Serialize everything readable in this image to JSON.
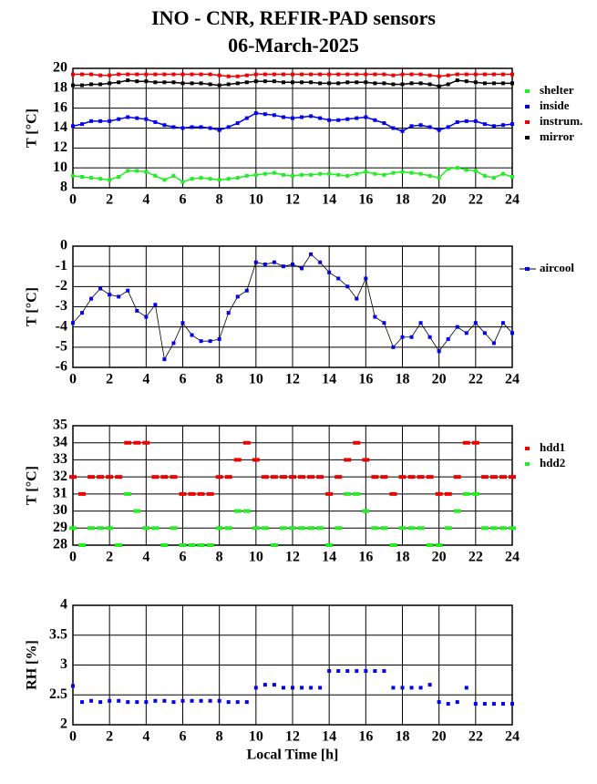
{
  "title": "INO - CNR, REFIR-PAD sensors",
  "subtitle": "06-March-2025",
  "chart_data": [
    {
      "type": "line",
      "ylabel": "T [°C]",
      "xlim": [
        0,
        24
      ],
      "xticks": [
        0,
        2,
        4,
        6,
        8,
        10,
        12,
        14,
        16,
        18,
        20,
        22,
        24
      ],
      "ylim": [
        8,
        20
      ],
      "yticks": [
        8,
        10,
        12,
        14,
        16,
        18,
        20
      ],
      "grid": true,
      "x": [
        0,
        0.5,
        1,
        1.5,
        2,
        2.5,
        3,
        3.5,
        4,
        4.5,
        5,
        5.5,
        6,
        6.5,
        7,
        7.5,
        8,
        8.5,
        9,
        9.5,
        10,
        10.5,
        11,
        11.5,
        12,
        12.5,
        13,
        13.5,
        14,
        14.5,
        15,
        15.5,
        16,
        16.5,
        17,
        17.5,
        18,
        18.5,
        19,
        19.5,
        20,
        20.5,
        21,
        21.5,
        22,
        22.5,
        23,
        23.5,
        24
      ],
      "series": [
        {
          "name": "shelter",
          "color": "#22ee22",
          "values": [
            9.2,
            9.1,
            9.0,
            8.9,
            8.8,
            9.1,
            9.7,
            9.7,
            9.6,
            9.2,
            8.8,
            9.2,
            8.6,
            8.9,
            9.0,
            8.9,
            8.8,
            8.9,
            9.0,
            9.2,
            9.3,
            9.4,
            9.5,
            9.3,
            9.2,
            9.3,
            9.3,
            9.4,
            9.4,
            9.3,
            9.2,
            9.4,
            9.6,
            9.4,
            9.3,
            9.5,
            9.6,
            9.5,
            9.4,
            9.2,
            9.0,
            9.9,
            10.0,
            9.8,
            9.7,
            9.2,
            9.0,
            9.4,
            9.1
          ]
        },
        {
          "name": "inside",
          "color": "#0000ee",
          "values": [
            14.2,
            14.4,
            14.7,
            14.7,
            14.7,
            14.9,
            15.1,
            15.0,
            14.9,
            14.6,
            14.3,
            14.1,
            14.0,
            14.1,
            14.1,
            14.0,
            13.8,
            14.1,
            14.5,
            15.0,
            15.5,
            15.4,
            15.3,
            15.1,
            15.0,
            15.1,
            15.2,
            15.0,
            14.8,
            14.8,
            14.9,
            15.0,
            15.1,
            14.8,
            14.5,
            14.0,
            13.7,
            14.2,
            14.3,
            14.1,
            13.8,
            14.1,
            14.6,
            14.7,
            14.7,
            14.4,
            14.2,
            14.3,
            14.4
          ]
        },
        {
          "name": "instrum.",
          "color": "#ee0000",
          "values": [
            19.4,
            19.4,
            19.4,
            19.3,
            19.3,
            19.4,
            19.4,
            19.4,
            19.4,
            19.4,
            19.4,
            19.4,
            19.4,
            19.4,
            19.4,
            19.4,
            19.3,
            19.2,
            19.2,
            19.3,
            19.4,
            19.4,
            19.4,
            19.4,
            19.4,
            19.4,
            19.4,
            19.4,
            19.4,
            19.4,
            19.4,
            19.4,
            19.4,
            19.4,
            19.4,
            19.3,
            19.4,
            19.4,
            19.4,
            19.3,
            19.2,
            19.3,
            19.4,
            19.4,
            19.4,
            19.4,
            19.4,
            19.4,
            19.4
          ]
        },
        {
          "name": "mirror",
          "color": "#000000",
          "values": [
            18.3,
            18.3,
            18.4,
            18.4,
            18.5,
            18.6,
            18.8,
            18.7,
            18.7,
            18.6,
            18.6,
            18.6,
            18.5,
            18.5,
            18.5,
            18.4,
            18.3,
            18.4,
            18.5,
            18.6,
            18.7,
            18.7,
            18.7,
            18.6,
            18.6,
            18.6,
            18.6,
            18.5,
            18.5,
            18.5,
            18.6,
            18.6,
            18.6,
            18.5,
            18.5,
            18.4,
            18.4,
            18.5,
            18.5,
            18.4,
            18.2,
            18.4,
            18.8,
            18.7,
            18.6,
            18.5,
            18.5,
            18.5,
            18.5
          ]
        }
      ]
    },
    {
      "type": "line",
      "ylabel": "T [°C]",
      "xlim": [
        0,
        24
      ],
      "xticks": [
        0,
        2,
        4,
        6,
        8,
        10,
        12,
        14,
        16,
        18,
        20,
        22,
        24
      ],
      "ylim": [
        -6,
        0
      ],
      "yticks": [
        -6,
        -5,
        -4,
        -3,
        -2,
        -1,
        0
      ],
      "grid": true,
      "x": [
        0,
        0.5,
        1,
        1.5,
        2,
        2.5,
        3,
        3.5,
        4,
        4.5,
        5,
        5.5,
        6,
        6.5,
        7,
        7.5,
        8,
        8.5,
        9,
        9.5,
        10,
        10.5,
        11,
        11.5,
        12,
        12.5,
        13,
        13.5,
        14,
        14.5,
        15,
        15.5,
        16,
        16.5,
        17,
        17.5,
        18,
        18.5,
        19,
        19.5,
        20,
        20.5,
        21,
        21.5,
        22,
        22.5,
        23,
        23.5,
        24
      ],
      "series": [
        {
          "name": "aircool",
          "color": "#0000ee",
          "values": [
            -3.8,
            -3.3,
            -2.6,
            -2.1,
            -2.4,
            -2.5,
            -2.2,
            -3.2,
            -3.5,
            -2.9,
            -5.6,
            -4.8,
            -3.8,
            -4.4,
            -4.7,
            -4.7,
            -4.6,
            -3.3,
            -2.5,
            -2.2,
            -0.8,
            -0.9,
            -0.8,
            -1.0,
            -0.9,
            -1.1,
            -0.4,
            -0.8,
            -1.3,
            -1.6,
            -2.0,
            -2.6,
            -1.6,
            -3.5,
            -3.8,
            -5.0,
            -4.5,
            -4.5,
            -3.8,
            -4.5,
            -5.2,
            -4.6,
            -4.0,
            -4.3,
            -3.8,
            -4.3,
            -4.8,
            -3.8,
            -4.3
          ]
        }
      ]
    },
    {
      "type": "scatter",
      "ylabel": "T [°C]",
      "xlim": [
        0,
        24
      ],
      "xticks": [
        0,
        2,
        4,
        6,
        8,
        10,
        12,
        14,
        16,
        18,
        20,
        22,
        24
      ],
      "ylim": [
        28,
        35
      ],
      "yticks": [
        28,
        29,
        30,
        31,
        32,
        33,
        34,
        35
      ],
      "grid": true,
      "x": [
        0,
        0.5,
        1,
        1.5,
        2,
        2.5,
        3,
        3.5,
        4,
        4.5,
        5,
        5.5,
        6,
        6.5,
        7,
        7.5,
        8,
        8.5,
        9,
        9.5,
        10,
        10.5,
        11,
        11.5,
        12,
        12.5,
        13,
        13.5,
        14,
        14.5,
        15,
        15.5,
        16,
        16.5,
        17,
        17.5,
        18,
        18.5,
        19,
        19.5,
        20,
        20.5,
        21,
        21.5,
        22,
        22.5,
        23,
        23.5,
        24
      ],
      "series": [
        {
          "name": "hdd1",
          "color": "#ee0000",
          "values": [
            32,
            31,
            32,
            32,
            32,
            32,
            34,
            34,
            34,
            32,
            32,
            32,
            31,
            31,
            31,
            31,
            32,
            32,
            33,
            34,
            33,
            32,
            32,
            32,
            32,
            32,
            32,
            32,
            31,
            32,
            33,
            34,
            33,
            32,
            32,
            31,
            32,
            32,
            32,
            32,
            31,
            31,
            32,
            34,
            34,
            32,
            32,
            32,
            32
          ]
        },
        {
          "name": "hdd2",
          "color": "#22ee22",
          "values": [
            29,
            28,
            29,
            29,
            29,
            28,
            31,
            30,
            29,
            29,
            28,
            29,
            28,
            28,
            28,
            28,
            29,
            29,
            30,
            30,
            29,
            29,
            28,
            29,
            29,
            29,
            29,
            29,
            28,
            29,
            31,
            31,
            30,
            29,
            29,
            28,
            29,
            29,
            29,
            28,
            28,
            29,
            30,
            31,
            31,
            29,
            29,
            29,
            29
          ]
        }
      ]
    },
    {
      "type": "scatter",
      "ylabel": "RH [%]",
      "xlabel": "Local Time [h]",
      "xlim": [
        0,
        24
      ],
      "xticks": [
        0,
        2,
        4,
        6,
        8,
        10,
        12,
        14,
        16,
        18,
        20,
        22,
        24
      ],
      "ylim": [
        2,
        4
      ],
      "yticks": [
        2,
        2.5,
        3,
        3.5,
        4
      ],
      "grid": true,
      "x": [
        0,
        0.5,
        1,
        1.5,
        2,
        2.5,
        3,
        3.5,
        4,
        4.5,
        5,
        5.5,
        6,
        6.5,
        7,
        7.5,
        8,
        8.5,
        9,
        9.5,
        10,
        10.5,
        11,
        11.5,
        12,
        12.5,
        13,
        13.5,
        14,
        14.5,
        15,
        15.5,
        16,
        16.5,
        17,
        17.5,
        18,
        18.5,
        19,
        19.5,
        20,
        20.5,
        21,
        21.5,
        22,
        22.5,
        23,
        23.5,
        24
      ],
      "series": [
        {
          "name": "RH",
          "color": "#0000ee",
          "values": [
            2.65,
            2.38,
            2.4,
            2.38,
            2.4,
            2.4,
            2.38,
            2.38,
            2.38,
            2.4,
            2.4,
            2.38,
            2.4,
            2.4,
            2.4,
            2.4,
            2.4,
            2.38,
            2.38,
            2.38,
            2.62,
            2.67,
            2.67,
            2.62,
            2.62,
            2.62,
            2.62,
            2.62,
            2.9,
            2.9,
            2.9,
            2.9,
            2.9,
            2.9,
            2.9,
            2.62,
            2.62,
            2.62,
            2.62,
            2.67,
            2.38,
            2.35,
            2.38,
            2.62,
            2.35,
            2.35,
            2.35,
            2.35,
            2.35
          ]
        }
      ]
    }
  ]
}
